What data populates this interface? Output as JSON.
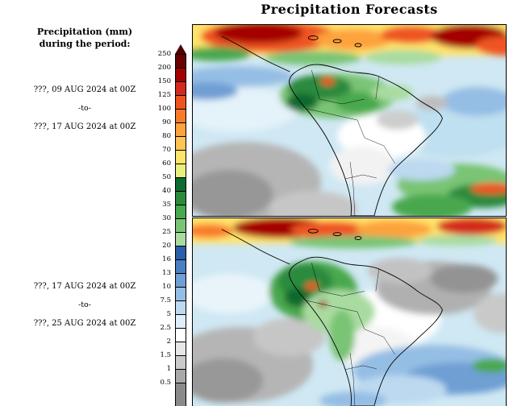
{
  "title": "Precipitation Forecasts",
  "sidebar": {
    "heading_line1": "Precipitation (mm)",
    "heading_line2": "during the period:",
    "period1": {
      "start": "???, 09 AUG 2024 at 00Z",
      "to": "-to-",
      "end": "???, 17 AUG 2024 at 00Z"
    },
    "period2": {
      "start": "???, 17 AUG 2024 at 00Z",
      "to": "-to-",
      "end": "???, 25 AUG 2024 at 00Z"
    }
  },
  "chart_data": {
    "type": "heatmap",
    "title": "Precipitation Forecasts",
    "region": "South America and adjacent oceans",
    "legend": {
      "label": "Precipitation (mm)",
      "levels": [
        "250",
        "200",
        "150",
        "125",
        "100",
        "90",
        "80",
        "70",
        "60",
        "50",
        "40",
        "35",
        "30",
        "25",
        "20",
        "16",
        "13",
        "10",
        "7.5",
        "5",
        "2.5",
        "2",
        "1.5",
        "1",
        "0.5"
      ],
      "triangle_top_color": "#4f0000",
      "segment_colors": [
        "#6b0000",
        "#a50000",
        "#d42a1e",
        "#ef5420",
        "#f97b2a",
        "#fda23c",
        "#fec454",
        "#ffe36b",
        "#e8ef7e",
        "#0f6b2f",
        "#2c8a3c",
        "#4aa84e",
        "#79c475",
        "#a9dba0",
        "#2c5faa",
        "#4a7fc1",
        "#6f9fd4",
        "#95bee4",
        "#bcd9f0",
        "#deeefa",
        "#ffffff",
        "#e6e6e6",
        "#c9c9c9",
        "#a8a8a8"
      ],
      "bottom_color": "#8a8a8a"
    },
    "panels": [
      {
        "name": "panel-1",
        "period_start": "???, 09 AUG 2024 at 00Z",
        "period_end": "???, 17 AUG 2024 at 00Z"
      },
      {
        "name": "panel-2",
        "period_start": "???, 17 AUG 2024 at 00Z",
        "period_end": "???, 25 AUG 2024 at 00Z"
      }
    ]
  }
}
